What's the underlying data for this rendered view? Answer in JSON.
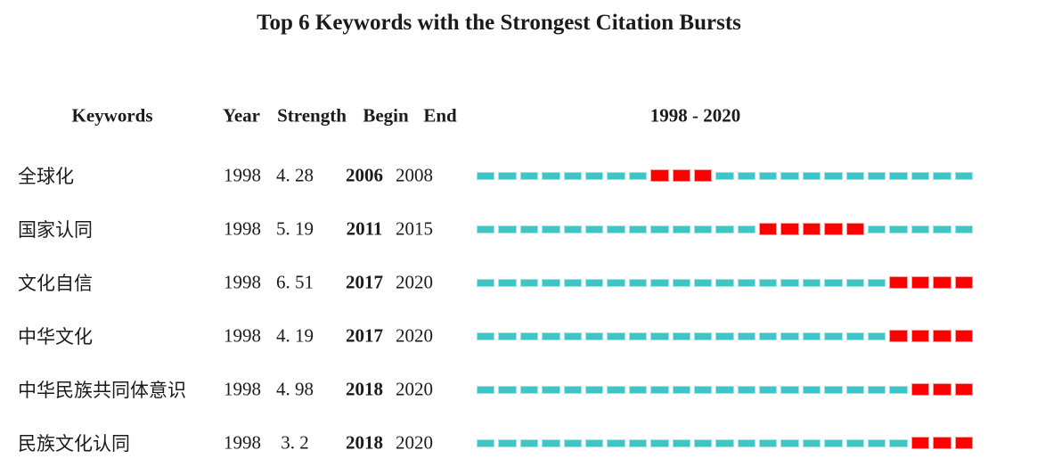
{
  "title": "Top 6 Keywords with the Strongest Citation Bursts",
  "header": {
    "keywords": "Keywords",
    "year": "Year",
    "strength": "Strength",
    "begin": "Begin",
    "end": "End",
    "range": "1998 - 2020"
  },
  "timeline": {
    "start_year": 1998,
    "end_year": 2020
  },
  "rows": [
    {
      "keyword": "全球化",
      "year": "1998",
      "strength": "4. 28",
      "begin": "2006",
      "end": "2008"
    },
    {
      "keyword": "国家认同",
      "year": "1998",
      "strength": "5. 19",
      "begin": "2011",
      "end": "2015"
    },
    {
      "keyword": "文化自信",
      "year": "1998",
      "strength": "6. 51",
      "begin": "2017",
      "end": "2020"
    },
    {
      "keyword": "中华文化",
      "year": "1998",
      "strength": "4. 19",
      "begin": "2017",
      "end": "2020"
    },
    {
      "keyword": "中华民族共同体意识",
      "year": "1998",
      "strength": "4. 98",
      "begin": "2018",
      "end": "2020"
    },
    {
      "keyword": "民族文化认同",
      "year": "1998",
      "strength": "3. 2",
      "begin": "2018",
      "end": "2020"
    }
  ],
  "colors": {
    "timeline_base": "#3fc5c7",
    "timeline_base_edge": "#a2e2e3",
    "timeline_burst": "#fe0000",
    "timeline_burst_edge": "#ff9d9d",
    "text": "#1b1b1b",
    "background": "#ffffff"
  },
  "chart_data": {
    "type": "table",
    "subtype": "citation-burst-timeline",
    "title": "Top 6 Keywords with the Strongest Citation Bursts",
    "columns": [
      "Keywords",
      "Year",
      "Strength",
      "Begin",
      "End",
      "1998 - 2020"
    ],
    "timeline": {
      "start_year": 1998,
      "end_year": 2020,
      "label": "1998 - 2020",
      "years_per_row": 23
    },
    "rows": [
      {
        "keyword": "全球化",
        "year": 1998,
        "strength": 4.28,
        "begin": 2006,
        "end": 2008
      },
      {
        "keyword": "国家认同",
        "year": 1998,
        "strength": 5.19,
        "begin": 2011,
        "end": 2015
      },
      {
        "keyword": "文化自信",
        "year": 1998,
        "strength": 6.51,
        "begin": 2017,
        "end": 2020
      },
      {
        "keyword": "中华文化",
        "year": 1998,
        "strength": 4.19,
        "begin": 2017,
        "end": 2020
      },
      {
        "keyword": "中华民族共同体意识",
        "year": 1998,
        "strength": 4.98,
        "begin": 2018,
        "end": 2020
      },
      {
        "keyword": "民族文化认同",
        "year": 1998,
        "strength": 3.2,
        "begin": 2018,
        "end": 2020
      }
    ],
    "legend": {
      "base_segment": "year outside burst period (cyan dash)",
      "burst_segment": "year inside burst period (red dash)"
    },
    "layout": {
      "grid": false,
      "legend_position": "none"
    }
  }
}
